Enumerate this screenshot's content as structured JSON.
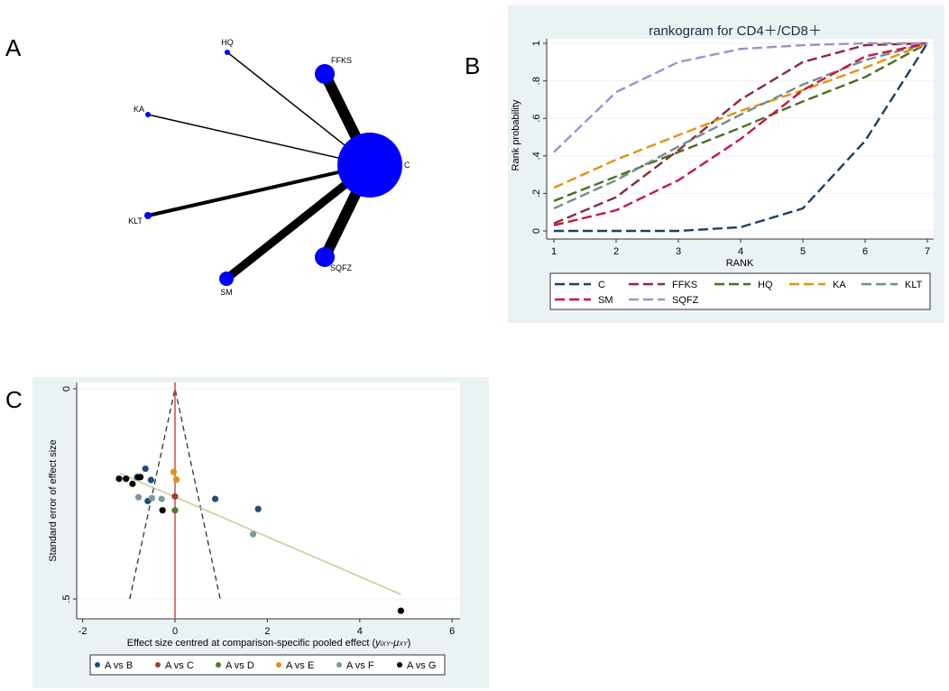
{
  "panel_labels": {
    "a": "A",
    "b": "B",
    "c": "C"
  },
  "colors": {
    "panel_bg": "#eaf2f3",
    "node": "#0000ff",
    "edge": "#000000"
  },
  "chart_data": [
    {
      "type": "network",
      "panel": "A",
      "nodes": [
        "C",
        "FFKS",
        "HQ",
        "KA",
        "KLT",
        "SQFZ",
        "SM"
      ],
      "edges": [
        [
          "C",
          "FFKS"
        ],
        [
          "C",
          "HQ"
        ],
        [
          "C",
          "KA"
        ],
        [
          "C",
          "KLT"
        ],
        [
          "C",
          "SQFZ"
        ],
        [
          "C",
          "SM"
        ]
      ]
    },
    {
      "type": "line",
      "panel": "B",
      "title": "rankogram for CD4＋/CD8＋",
      "xlabel": "RANK",
      "ylabel": "Rank probability",
      "x": [
        1,
        2,
        3,
        4,
        5,
        6,
        7
      ],
      "xlim": [
        1,
        7
      ],
      "ylim": [
        0,
        1
      ],
      "yticks": [
        "0",
        ".2",
        ".4",
        ".6",
        ".8",
        "1"
      ],
      "ytick_values": [
        0,
        0.2,
        0.4,
        0.6,
        0.8,
        1
      ],
      "xticks": [
        "1",
        "2",
        "3",
        "4",
        "5",
        "6",
        "7"
      ],
      "grid": true,
      "legend_position": "bottom",
      "series": [
        {
          "name": "C",
          "color": "#1b3f6b",
          "values": [
            0,
            0,
            0,
            0.02,
            0.12,
            0.48,
            1
          ]
        },
        {
          "name": "FFKS",
          "color": "#8b2a3a",
          "values": [
            0.04,
            0.18,
            0.43,
            0.7,
            0.9,
            0.99,
            1
          ]
        },
        {
          "name": "HQ",
          "color": "#4a6e1e",
          "values": [
            0.16,
            0.29,
            0.42,
            0.55,
            0.69,
            0.82,
            1
          ]
        },
        {
          "name": "KA",
          "color": "#e8900c",
          "values": [
            0.23,
            0.38,
            0.51,
            0.64,
            0.75,
            0.87,
            1
          ]
        },
        {
          "name": "KLT",
          "color": "#6f8f8c",
          "values": [
            0.12,
            0.27,
            0.45,
            0.62,
            0.78,
            0.91,
            1
          ]
        },
        {
          "name": "SM",
          "color": "#c8163f",
          "values": [
            0.03,
            0.11,
            0.27,
            0.49,
            0.75,
            0.93,
            1
          ]
        },
        {
          "name": "SQFZ",
          "color": "#a08fd6",
          "values": [
            0.42,
            0.74,
            0.9,
            0.97,
            0.99,
            1,
            1
          ]
        }
      ]
    },
    {
      "type": "scatter",
      "panel": "C",
      "xlabel": "Effect size centred at comparison-specific pooled effect (",
      "xlabel_math": "y",
      "xlabel_sub1": "iXY",
      "xlabel_dash": "-μ",
      "xlabel_sub2": "XY",
      "xlabel_end": ")",
      "ylabel": "Standard error of effect size",
      "xlim": [
        -2.1,
        6.1
      ],
      "ylim": [
        0,
        0.54
      ],
      "xticks": [
        "-2",
        "0",
        "2",
        "4",
        "6"
      ],
      "xtick_values": [
        -2,
        0,
        2,
        4,
        6
      ],
      "yticks": [
        "0",
        ".5"
      ],
      "ytick_values": [
        0,
        0.5
      ],
      "legend_position": "bottom",
      "reference_line_x": 0,
      "funnel_half_width_at_0_5": 0.98,
      "fit_line": [
        [
          -1.19,
          0.201
        ],
        [
          4.89,
          0.489
        ]
      ],
      "series": [
        {
          "name": "A vs B",
          "color": "#1f4e7a",
          "points": [
            [
              -0.64,
              0.19
            ],
            [
              -0.82,
              0.21
            ],
            [
              -0.52,
              0.217
            ],
            [
              -0.59,
              0.267
            ],
            [
              0.87,
              0.262
            ],
            [
              1.8,
              0.286
            ]
          ]
        },
        {
          "name": "A vs C",
          "color": "#a83a3a",
          "points": [
            [
              0,
              0.256
            ]
          ]
        },
        {
          "name": "A vs D",
          "color": "#4f7a2a",
          "points": [
            [
              0,
              0.289
            ]
          ]
        },
        {
          "name": "A vs E",
          "color": "#e8900c",
          "points": [
            [
              -0.03,
              0.198
            ],
            [
              0.03,
              0.216
            ]
          ]
        },
        {
          "name": "A vs F",
          "color": "#7a9a96",
          "points": [
            [
              -0.79,
              0.258
            ],
            [
              -0.5,
              0.26
            ],
            [
              -0.29,
              0.262
            ],
            [
              1.69,
              0.346
            ]
          ]
        },
        {
          "name": "A vs G",
          "color": "#000000",
          "points": [
            [
              -1.21,
              0.214
            ],
            [
              -1.06,
              0.214
            ],
            [
              -0.79,
              0.21
            ],
            [
              -0.75,
              0.21
            ],
            [
              -0.92,
              0.226
            ],
            [
              -0.27,
              0.289
            ],
            [
              4.89,
              0.528
            ]
          ]
        }
      ]
    }
  ]
}
